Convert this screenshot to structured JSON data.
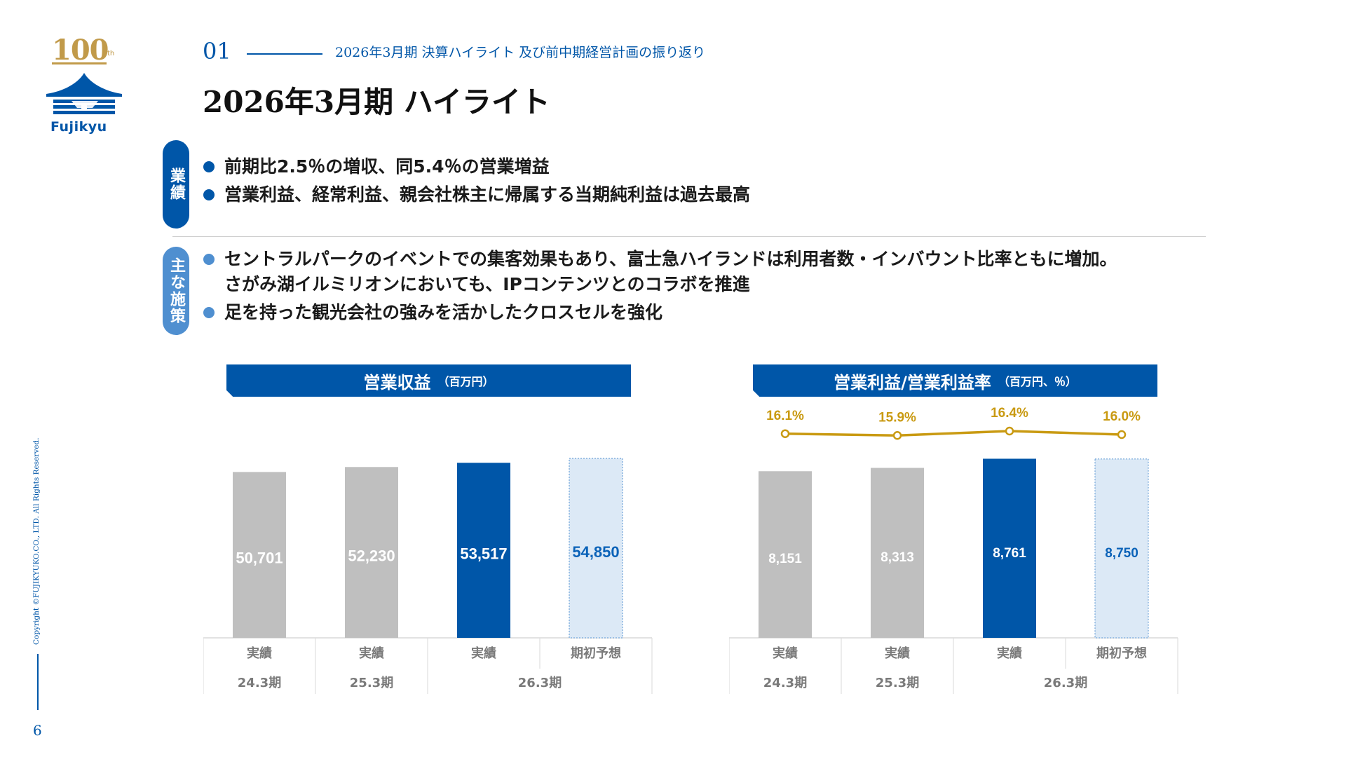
{
  "logo": {
    "anniversary": "100",
    "suffix": "th",
    "name": "Fujikyu",
    "gold": "#c19a4a",
    "blue": "#0056a8"
  },
  "header": {
    "section_number": "01",
    "section_title": "2026年3月期 決算ハイライト 及び前中期経営計画の振り返り",
    "page_title": "2026年3月期 ハイライト"
  },
  "highlights": {
    "results_tab": "業績",
    "results": [
      "前期比2.5％の増収、同5.4％の営業増益",
      "営業利益、経常利益、親会社株主に帰属する当期純利益は過去最高"
    ],
    "measures_tab": "主な施策",
    "measures": [
      [
        "セントラルパークのイベントでの集客効果もあり、富士急ハイランドは利用者数・インバウント比率ともに増加。",
        "さがみ湖イルミリオンにおいても、IPコンテンツとのコラボを推進"
      ],
      [
        "足を持った観光会社の強みを活かしたクロスセルを強化"
      ]
    ]
  },
  "chart_data": [
    {
      "type": "bar",
      "title": "営業収益",
      "unit": "（百万円）",
      "categories": [
        "実績",
        "実績",
        "実績",
        "期初予想"
      ],
      "periods": [
        "24.3期",
        "25.3期",
        "26.3期"
      ],
      "period_spans": [
        1,
        1,
        2
      ],
      "values": [
        50701,
        52230,
        53517,
        54850
      ],
      "labels": [
        "50,701",
        "52,230",
        "53,517",
        "54,850"
      ],
      "bar_styles": [
        "actual-past",
        "actual-past",
        "actual-current",
        "forecast"
      ],
      "ylim": [
        0,
        60000
      ]
    },
    {
      "type": "bar+line",
      "title": "営業利益/営業利益率",
      "unit": "（百万円、％）",
      "categories": [
        "実績",
        "実績",
        "実績",
        "期初予想"
      ],
      "periods": [
        "24.3期",
        "25.3期",
        "26.3期"
      ],
      "period_spans": [
        1,
        1,
        2
      ],
      "values": [
        8151,
        8313,
        8761,
        8750
      ],
      "labels": [
        "8,151",
        "8,313",
        "8,761",
        "8,750"
      ],
      "margin_values": [
        16.1,
        15.9,
        16.4,
        16.0
      ],
      "margin_labels": [
        "16.1%",
        "15.9%",
        "16.4%",
        "16.0%"
      ],
      "bar_styles": [
        "actual-past",
        "actual-past",
        "actual-current",
        "forecast"
      ],
      "ylim": [
        0,
        9600
      ]
    }
  ],
  "colors": {
    "past": "#bfbfbf",
    "current": "#0056a8",
    "forecast_fill": "#dce9f6",
    "forecast_border": "#6fa3d8",
    "forecast_text": "#0a62b8",
    "line": "#c99a12",
    "axis_text": "#7a7a7a",
    "grid": "#d9d9d9"
  },
  "footer": {
    "copyright": "Copyright ©FUJIKYUKO.CO., LTD. All Rights Reserved.",
    "page_number": "6"
  }
}
